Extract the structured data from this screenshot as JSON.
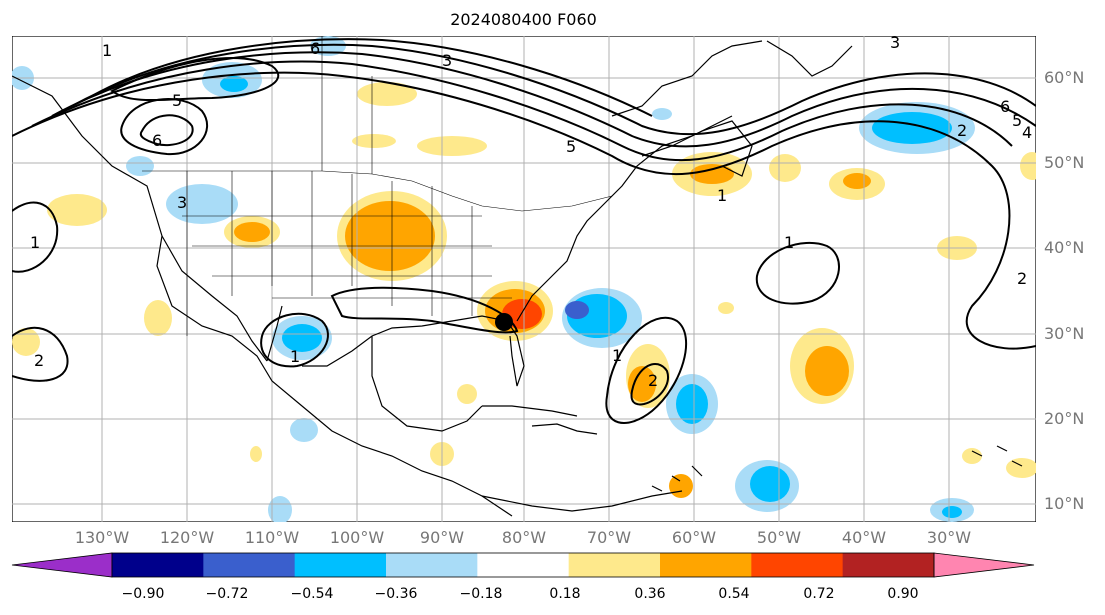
{
  "title": "2024080400 F060",
  "map": {
    "lat_labels": [
      "60°N",
      "50°N",
      "40°N",
      "30°N",
      "20°N",
      "10°N"
    ],
    "lon_labels": [
      "130°W",
      "120°W",
      "110°W",
      "100°W",
      "90°W",
      "80°W",
      "70°W",
      "60°W",
      "50°W",
      "40°W",
      "30°W"
    ],
    "contour_labels": [
      "1",
      "2",
      "3",
      "4",
      "5",
      "6"
    ],
    "marker": "storm-center-dot"
  },
  "colorbar": {
    "ticks": [
      "−0.90",
      "−0.72",
      "−0.54",
      "−0.36",
      "−0.18",
      "0.18",
      "0.36",
      "0.54",
      "0.72",
      "0.90"
    ],
    "colors": [
      "#9b2ec9",
      "#00008b",
      "#3a5fcd",
      "#00bfff",
      "#a9dcf7",
      "#ffffff",
      "#fee98c",
      "#ffa500",
      "#ff4500",
      "#b22222",
      "#ff85b0"
    ]
  }
}
